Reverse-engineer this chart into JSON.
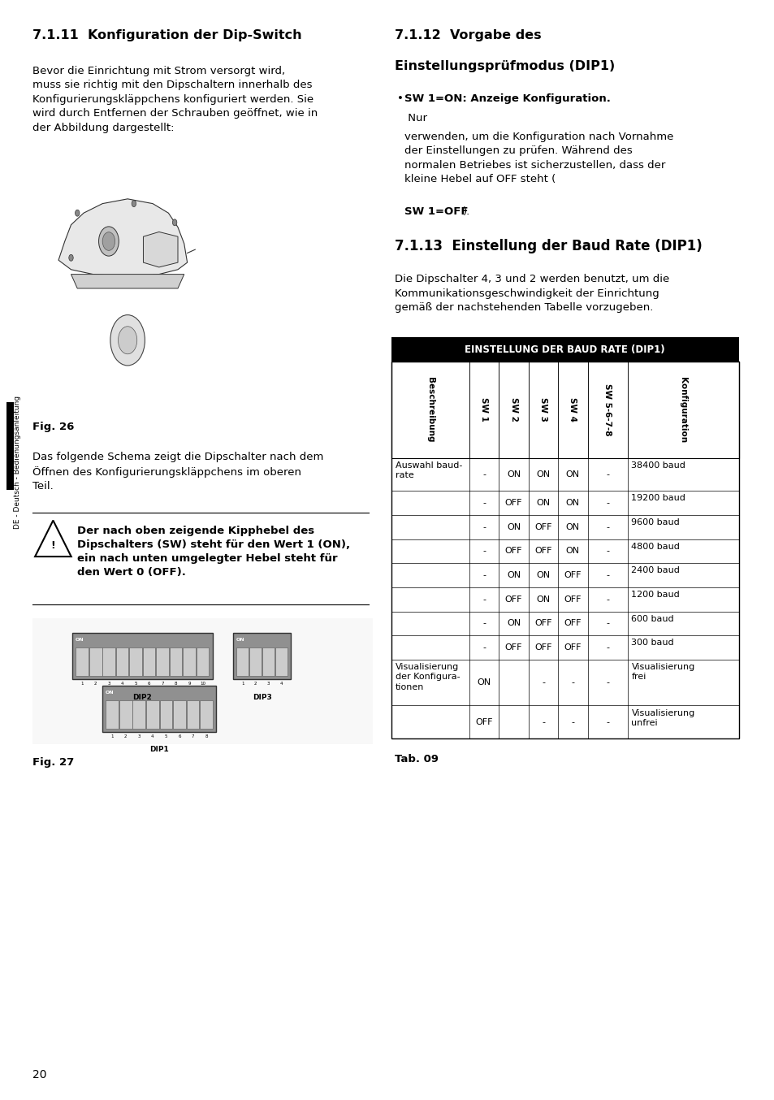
{
  "page_bg": "#ffffff",
  "section1_title": "7.1.11  Konfiguration der Dip-Switch",
  "fig26_label": "Fig. 26",
  "fig27_label": "Fig. 27",
  "section2_title_line1": "7.1.12  Vorgabe des",
  "section2_title_line2": "Einstellungsprüfmodus (DIP1)",
  "section3_title": "7.1.13  Einstellung der Baud Rate (DIP1)",
  "table_header": "EINSTELLUNG DER BAUD RATE (DIP1)",
  "table_col_headers": [
    "Beschreibung",
    "SW 1",
    "SW 2",
    "SW 3",
    "SW 4",
    "SW 5-6-7-8",
    "Konfiguration"
  ],
  "table_rows": [
    [
      "Auswahl baud-\nrate",
      "-",
      "ON",
      "ON",
      "ON",
      "-",
      "38400 baud"
    ],
    [
      "",
      "-",
      "OFF",
      "ON",
      "ON",
      "-",
      "19200 baud"
    ],
    [
      "",
      "-",
      "ON",
      "OFF",
      "ON",
      "-",
      "9600 baud"
    ],
    [
      "",
      "-",
      "OFF",
      "OFF",
      "ON",
      "-",
      "4800 baud"
    ],
    [
      "",
      "-",
      "ON",
      "ON",
      "OFF",
      "-",
      "2400 baud"
    ],
    [
      "",
      "-",
      "OFF",
      "ON",
      "OFF",
      "-",
      "1200 baud"
    ],
    [
      "",
      "-",
      "ON",
      "OFF",
      "OFF",
      "-",
      "600 baud"
    ],
    [
      "",
      "-",
      "OFF",
      "OFF",
      "OFF",
      "-",
      "300 baud"
    ],
    [
      "Visualisierung\nder Konfigura-\ntionen",
      "ON",
      "",
      "-",
      "-",
      "-",
      "Visualisierung\nfrei"
    ],
    [
      "",
      "OFF",
      "",
      "-",
      "-",
      "-",
      "Visualisierung\nunfrei"
    ]
  ],
  "tab_label": "Tab. 09",
  "page_number": "20",
  "side_label": "DE - Deutsch - Bedienungsanleitung",
  "title_fontsize": 11.5,
  "body_fontsize": 9.5,
  "table_fontsize": 8.0,
  "table_header_fontsize": 8.5
}
